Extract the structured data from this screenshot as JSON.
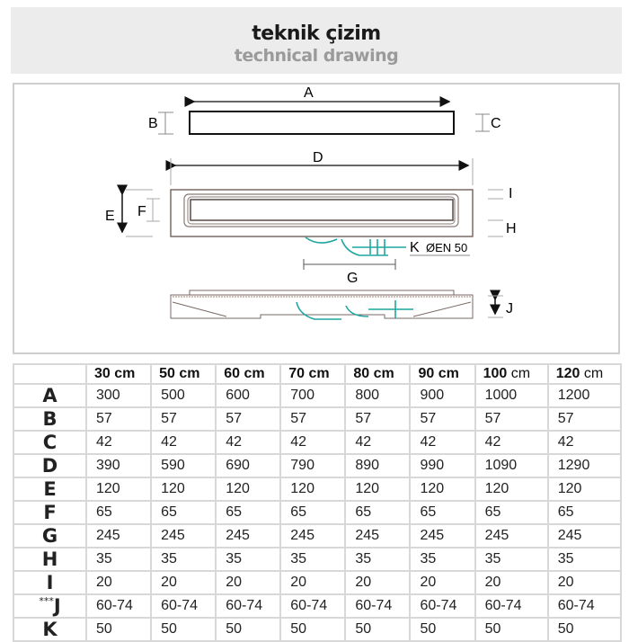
{
  "header": {
    "title": "teknik çizim",
    "subtitle": "technical drawing"
  },
  "drawing": {
    "labels": {
      "A": "A",
      "B": "B",
      "C": "C",
      "D": "D",
      "E": "E",
      "F": "F",
      "G": "G",
      "H": "H",
      "I": "I",
      "J": "J",
      "K": "K",
      "pipe": "ØEN 50"
    },
    "siphon_color": "#1fa6a0"
  },
  "table": {
    "columns": [
      {
        "num": "30",
        "unit": "cm"
      },
      {
        "num": "50",
        "unit": "cm"
      },
      {
        "num": "60",
        "unit": "cm"
      },
      {
        "num": "70",
        "unit": "cm"
      },
      {
        "num": "80",
        "unit": "cm"
      },
      {
        "num": "90",
        "unit": "cm"
      },
      {
        "num": "100",
        "unit": "cm"
      },
      {
        "num": "120",
        "unit": "cm"
      }
    ],
    "rows": [
      {
        "prefix": "",
        "label": "A",
        "values": [
          "300",
          "500",
          "600",
          "700",
          "800",
          "900",
          "1000",
          "1200"
        ]
      },
      {
        "prefix": "",
        "label": "B",
        "values": [
          "57",
          "57",
          "57",
          "57",
          "57",
          "57",
          "57",
          "57"
        ]
      },
      {
        "prefix": "",
        "label": "C",
        "values": [
          "42",
          "42",
          "42",
          "42",
          "42",
          "42",
          "42",
          "42"
        ]
      },
      {
        "prefix": "",
        "label": "D",
        "values": [
          "390",
          "590",
          "690",
          "790",
          "890",
          "990",
          "1090",
          "1290"
        ]
      },
      {
        "prefix": "",
        "label": "E",
        "values": [
          "120",
          "120",
          "120",
          "120",
          "120",
          "120",
          "120",
          "120"
        ]
      },
      {
        "prefix": "",
        "label": "F",
        "values": [
          "65",
          "65",
          "65",
          "65",
          "65",
          "65",
          "65",
          "65"
        ]
      },
      {
        "prefix": "",
        "label": "G",
        "values": [
          "245",
          "245",
          "245",
          "245",
          "245",
          "245",
          "245",
          "245"
        ]
      },
      {
        "prefix": "",
        "label": "H",
        "values": [
          "35",
          "35",
          "35",
          "35",
          "35",
          "35",
          "35",
          "35"
        ]
      },
      {
        "prefix": "",
        "label": "I",
        "values": [
          "20",
          "20",
          "20",
          "20",
          "20",
          "20",
          "20",
          "20"
        ]
      },
      {
        "prefix": "***",
        "label": "J",
        "values": [
          "60-74",
          "60-74",
          "60-74",
          "60-74",
          "60-74",
          "60-74",
          "60-74",
          "60-74"
        ]
      },
      {
        "prefix": "",
        "label": "K",
        "values": [
          "50",
          "50",
          "50",
          "50",
          "50",
          "50",
          "50",
          "50"
        ]
      }
    ]
  }
}
